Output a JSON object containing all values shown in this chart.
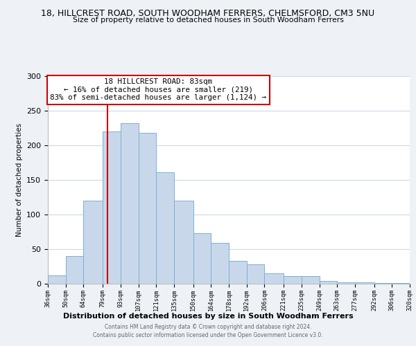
{
  "title1": "18, HILLCREST ROAD, SOUTH WOODHAM FERRERS, CHELMSFORD, CM3 5NU",
  "title2": "Size of property relative to detached houses in South Woodham Ferrers",
  "xlabel": "Distribution of detached houses by size in South Woodham Ferrers",
  "ylabel": "Number of detached properties",
  "bin_labels": [
    "36sqm",
    "50sqm",
    "64sqm",
    "79sqm",
    "93sqm",
    "107sqm",
    "121sqm",
    "135sqm",
    "150sqm",
    "164sqm",
    "178sqm",
    "192sqm",
    "206sqm",
    "221sqm",
    "235sqm",
    "249sqm",
    "263sqm",
    "277sqm",
    "292sqm",
    "306sqm",
    "320sqm"
  ],
  "bar_heights": [
    12,
    40,
    120,
    220,
    232,
    218,
    161,
    120,
    73,
    59,
    33,
    28,
    15,
    11,
    11,
    4,
    2,
    2,
    1,
    1
  ],
  "bar_color": "#c8d8ea",
  "bar_edge_color": "#7ab0d4",
  "vline_x": 83,
  "vline_color": "#cc0000",
  "annotation_text": "18 HILLCREST ROAD: 83sqm\n← 16% of detached houses are smaller (219)\n83% of semi-detached houses are larger (1,124) →",
  "annotation_box_color": "#ffffff",
  "annotation_box_edge": "#cc0000",
  "ylim": [
    0,
    300
  ],
  "yticks": [
    0,
    50,
    100,
    150,
    200,
    250,
    300
  ],
  "footer1": "Contains HM Land Registry data © Crown copyright and database right 2024.",
  "footer2": "Contains public sector information licensed under the Open Government Licence v3.0.",
  "bg_color": "#eef2f7",
  "plot_bg_color": "#ffffff",
  "bin_edges": [
    36,
    50,
    64,
    79,
    93,
    107,
    121,
    135,
    150,
    164,
    178,
    192,
    206,
    221,
    235,
    249,
    263,
    277,
    292,
    306,
    320
  ]
}
